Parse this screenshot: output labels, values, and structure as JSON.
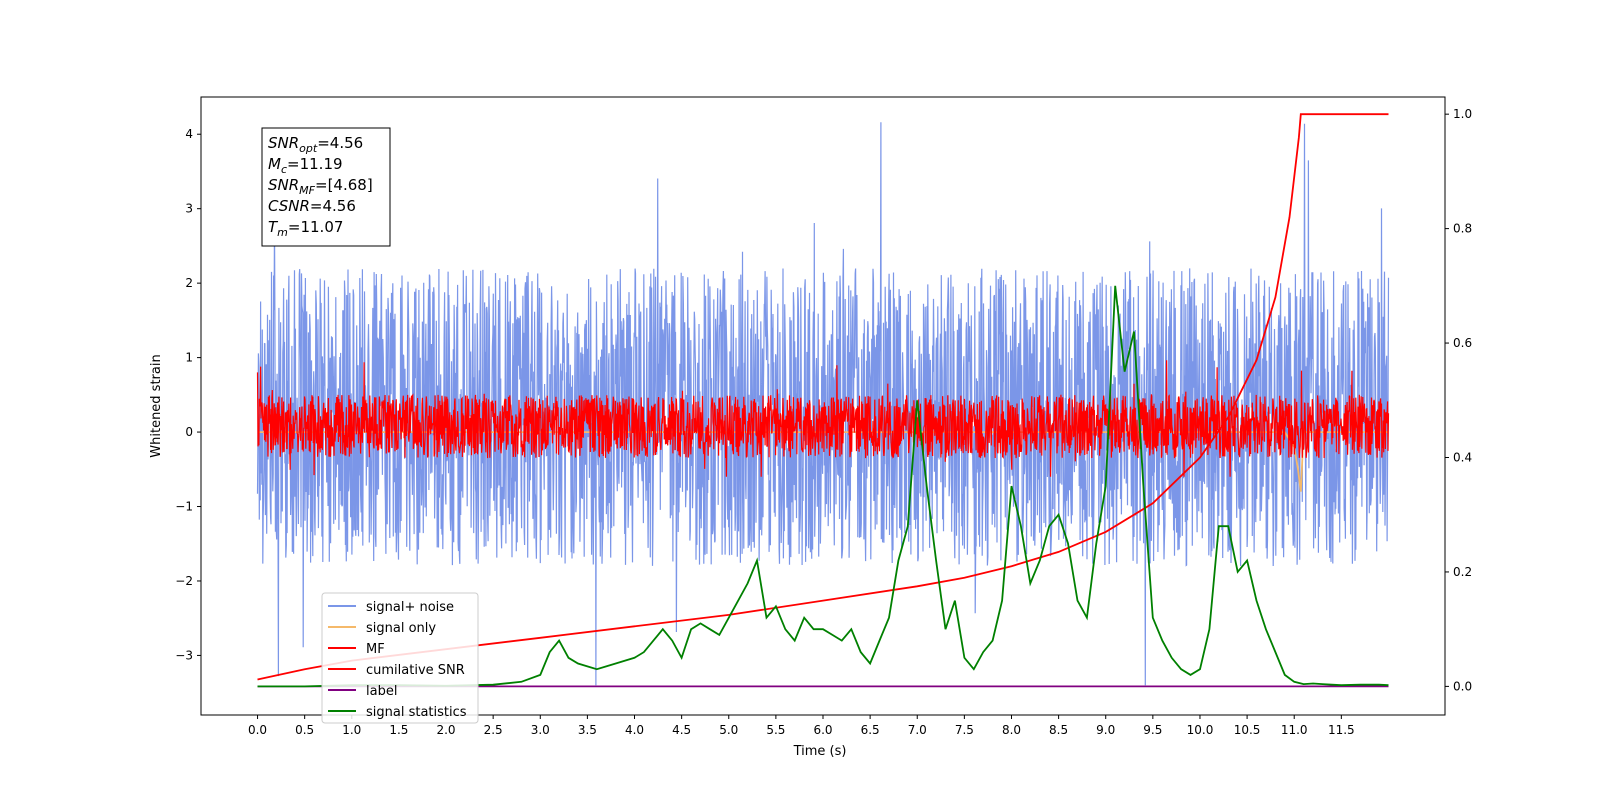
{
  "chart_data": {
    "type": "line",
    "xlabel": "Time (s)",
    "ylabel": "Whitened strain",
    "xlim": [
      -0.6,
      12.6
    ],
    "ylim": [
      -3.8,
      4.5
    ],
    "ylim_right": [
      -0.05,
      1.03
    ],
    "grid": false,
    "legend_position": "lower-left",
    "x_ticks": [
      "0.0",
      "0.5",
      "1.0",
      "1.5",
      "2.0",
      "2.5",
      "3.0",
      "3.5",
      "4.0",
      "4.5",
      "5.0",
      "5.5",
      "6.0",
      "6.5",
      "7.0",
      "7.5",
      "8.0",
      "8.5",
      "9.0",
      "9.5",
      "10.0",
      "10.5",
      "11.0",
      "11.5"
    ],
    "y_ticks_left": [
      "−3",
      "−2",
      "−1",
      "0",
      "1",
      "2",
      "3",
      "4"
    ],
    "y_ticks_right": [
      "0.0",
      "0.2",
      "0.4",
      "0.6",
      "0.8",
      "1.0"
    ],
    "annotation": [
      {
        "sym": "SNR",
        "sub": "opt",
        "value": "=4.56"
      },
      {
        "sym": "M",
        "sub": "c",
        "value": "=11.19"
      },
      {
        "sym": "SNR",
        "sub": "MF",
        "value": "=[4.68]"
      },
      {
        "sym": "CSNR",
        "sub": "",
        "value": "=4.56"
      },
      {
        "sym": "T",
        "sub": "m",
        "value": "=11.07"
      }
    ],
    "series": [
      {
        "name": "signal+ noise",
        "color": "#7b96e8",
        "axis": "left",
        "style": "noise",
        "x_range": [
          0.0,
          12.0
        ],
        "typical_band": [
          -1.8,
          2.2
        ],
        "envelope": [
          -3.4,
          4.2
        ],
        "seed": 17
      },
      {
        "name": "signal only",
        "color": "#f5b96a",
        "axis": "left",
        "x": [
          0.0,
          10.9,
          11.0,
          11.04,
          11.07,
          11.1,
          12.0
        ],
        "y": [
          0.0,
          0.0,
          -0.2,
          -0.5,
          -0.8,
          0.0,
          0.0
        ]
      },
      {
        "name": "MF",
        "color": "#ff0000",
        "axis": "left",
        "style": "noise",
        "x_range": [
          0.0,
          12.0
        ],
        "typical_band": [
          -0.35,
          0.5
        ],
        "envelope": [
          -0.6,
          1.0
        ],
        "seed": 41
      },
      {
        "name": "cumilative SNR",
        "color": "#ff0000",
        "axis": "right",
        "x": [
          0.0,
          0.5,
          1.0,
          2.0,
          3.0,
          4.0,
          5.0,
          6.0,
          7.0,
          7.5,
          8.0,
          8.5,
          9.0,
          9.5,
          10.0,
          10.3,
          10.6,
          10.8,
          10.95,
          11.05,
          11.07,
          12.0
        ],
        "y": [
          0.012,
          0.03,
          0.045,
          0.065,
          0.085,
          0.105,
          0.125,
          0.15,
          0.175,
          0.19,
          0.21,
          0.235,
          0.27,
          0.32,
          0.4,
          0.47,
          0.57,
          0.68,
          0.82,
          0.96,
          1.0,
          1.0
        ]
      },
      {
        "name": "label",
        "color": "#800080",
        "axis": "right",
        "x": [
          0.0,
          12.0
        ],
        "y": [
          0.0,
          0.0
        ]
      },
      {
        "name": "signal statistics",
        "color": "#008000",
        "axis": "right",
        "x": [
          0.0,
          0.5,
          1.0,
          1.5,
          2.0,
          2.5,
          2.8,
          3.0,
          3.1,
          3.2,
          3.3,
          3.4,
          3.5,
          3.6,
          3.7,
          3.8,
          3.9,
          4.0,
          4.1,
          4.2,
          4.3,
          4.4,
          4.5,
          4.6,
          4.7,
          4.8,
          4.9,
          5.0,
          5.1,
          5.2,
          5.3,
          5.4,
          5.5,
          5.6,
          5.7,
          5.8,
          5.9,
          6.0,
          6.1,
          6.2,
          6.3,
          6.4,
          6.5,
          6.6,
          6.7,
          6.8,
          6.9,
          7.0,
          7.1,
          7.2,
          7.3,
          7.4,
          7.5,
          7.6,
          7.7,
          7.8,
          7.9,
          8.0,
          8.1,
          8.2,
          8.3,
          8.4,
          8.5,
          8.6,
          8.7,
          8.8,
          8.9,
          9.0,
          9.1,
          9.2,
          9.3,
          9.4,
          9.5,
          9.6,
          9.7,
          9.8,
          9.9,
          10.0,
          10.1,
          10.2,
          10.3,
          10.4,
          10.5,
          10.6,
          10.7,
          10.8,
          10.9,
          11.0,
          11.1,
          11.2,
          11.3,
          11.5,
          11.7,
          11.9,
          12.0
        ],
        "y": [
          0.0,
          0.0,
          0.002,
          0.002,
          0.001,
          0.003,
          0.008,
          0.02,
          0.06,
          0.08,
          0.05,
          0.04,
          0.035,
          0.03,
          0.035,
          0.04,
          0.045,
          0.05,
          0.06,
          0.08,
          0.1,
          0.08,
          0.05,
          0.1,
          0.11,
          0.1,
          0.09,
          0.12,
          0.15,
          0.18,
          0.22,
          0.12,
          0.14,
          0.1,
          0.08,
          0.12,
          0.1,
          0.1,
          0.09,
          0.08,
          0.1,
          0.06,
          0.04,
          0.08,
          0.12,
          0.22,
          0.28,
          0.5,
          0.35,
          0.22,
          0.1,
          0.15,
          0.05,
          0.03,
          0.06,
          0.08,
          0.15,
          0.35,
          0.28,
          0.18,
          0.22,
          0.28,
          0.3,
          0.25,
          0.15,
          0.12,
          0.25,
          0.35,
          0.7,
          0.55,
          0.62,
          0.35,
          0.12,
          0.08,
          0.05,
          0.03,
          0.02,
          0.03,
          0.1,
          0.28,
          0.28,
          0.2,
          0.22,
          0.15,
          0.1,
          0.06,
          0.02,
          0.008,
          0.004,
          0.005,
          0.004,
          0.002,
          0.003,
          0.003,
          0.002
        ]
      }
    ]
  }
}
